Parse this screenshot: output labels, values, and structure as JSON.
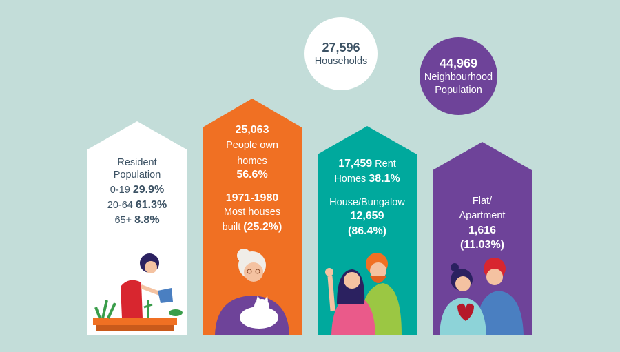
{
  "colors": {
    "background": "#c3ddd9",
    "white": "#ffffff",
    "orange": "#f07023",
    "teal": "#00a99d",
    "purple": "#6e4399",
    "text_dark": "#3c5264"
  },
  "circles": [
    {
      "value": "27,596",
      "label": "Households"
    },
    {
      "value": "44,969",
      "label_line1": "Neighbourhood",
      "label_line2": "Population"
    }
  ],
  "houses": [
    {
      "title_line1": "Resident",
      "title_line2": "Population",
      "rows": [
        {
          "label": "0-19",
          "value": "29.9%"
        },
        {
          "label": "20-64",
          "value": "61.3%"
        },
        {
          "label": "65+",
          "value": "8.8%"
        }
      ],
      "illustration": "woman-watering-plants"
    },
    {
      "value": "25,063",
      "line1": "People own",
      "line2": "homes",
      "percent": "56.6%",
      "years": "1971-1980",
      "line3": "Most houses",
      "line4": "built",
      "years_percent": "(25.2%)",
      "illustration": "grandmother-with-cat"
    },
    {
      "value": "17,459",
      "value_suffix": "Rent",
      "line2": "Homes",
      "percent": "38.1%",
      "type": "House/Bungalow",
      "type_value": "12,659",
      "type_percent": "(86.4%)",
      "illustration": "couple-waving"
    },
    {
      "line1": "Flat/",
      "line2": "Apartment",
      "value": "1,616",
      "percent": "(11.03%)",
      "illustration": "couple-with-heart"
    }
  ]
}
